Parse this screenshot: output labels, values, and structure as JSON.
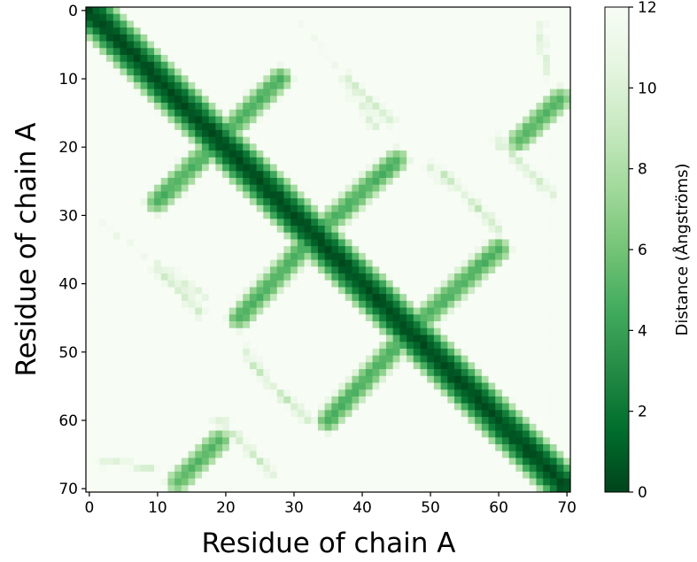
{
  "chart_data": {
    "type": "heatmap",
    "title": "",
    "xlabel": "Residue of chain A",
    "ylabel": "Residue of chain A",
    "colorbar_label": "Distance (Ångströms)",
    "x_range": [
      0,
      70
    ],
    "y_range": [
      0,
      70
    ],
    "y_axis_inverted": true,
    "x_ticks": [
      0,
      10,
      20,
      30,
      40,
      50,
      60,
      70
    ],
    "y_ticks": [
      0,
      10,
      20,
      30,
      40,
      50,
      60,
      70
    ],
    "colorbar_range": [
      0,
      12
    ],
    "colorbar_ticks": [
      0,
      2,
      4,
      6,
      8,
      10,
      12
    ],
    "colormap": "Greens_r",
    "colormap_stops": [
      "#00441b",
      "#006d2c",
      "#238b45",
      "#41ab5d",
      "#74c476",
      "#a1d99b",
      "#c7e9c0",
      "#e5f5e0",
      "#f7fcf5"
    ],
    "residue_count": 71,
    "contact_bands": [
      {
        "from": [
          0,
          0
        ],
        "to": [
          70,
          70
        ],
        "min_distance": 0
      },
      {
        "from": [
          18,
          20
        ],
        "to": [
          28,
          10
        ],
        "min_distance": 4.5
      },
      {
        "from": [
          20,
          18
        ],
        "to": [
          10,
          28
        ],
        "min_distance": 4.5
      },
      {
        "from": [
          33,
          33
        ],
        "to": [
          45,
          22
        ],
        "min_distance": 4.5
      },
      {
        "from": [
          33,
          33
        ],
        "to": [
          22,
          45
        ],
        "min_distance": 4.5
      },
      {
        "from": [
          47,
          47
        ],
        "to": [
          60,
          35
        ],
        "min_distance": 4.5
      },
      {
        "from": [
          47,
          47
        ],
        "to": [
          35,
          60
        ],
        "min_distance": 4.5
      },
      {
        "from": [
          63,
          19
        ],
        "to": [
          69,
          13
        ],
        "min_distance": 4.8
      },
      {
        "from": [
          19,
          63
        ],
        "to": [
          13,
          69
        ],
        "min_distance": 4.8
      }
    ],
    "weak_contact_regions": [
      {
        "from": [
          10,
          38
        ],
        "to": [
          16,
          44
        ],
        "min_distance": 8.5
      },
      {
        "from": [
          38,
          10
        ],
        "to": [
          44,
          16
        ],
        "min_distance": 8.5
      },
      {
        "from": [
          24,
          52
        ],
        "to": [
          32,
          60
        ],
        "min_distance": 8.5
      },
      {
        "from": [
          52,
          24
        ],
        "to": [
          60,
          32
        ],
        "min_distance": 8.5
      },
      {
        "from": [
          37,
          10
        ],
        "to": [
          42,
          17
        ],
        "min_distance": 9.0
      },
      {
        "from": [
          10,
          37
        ],
        "to": [
          17,
          42
        ],
        "min_distance": 9.0
      },
      {
        "from": [
          50,
          23
        ],
        "to": [
          56,
          28
        ],
        "min_distance": 9.0
      },
      {
        "from": [
          23,
          50
        ],
        "to": [
          28,
          56
        ],
        "min_distance": 9.0
      },
      {
        "from": [
          60,
          19
        ],
        "to": [
          68,
          27
        ],
        "min_distance": 8.5
      },
      {
        "from": [
          19,
          60
        ],
        "to": [
          27,
          68
        ],
        "min_distance": 8.5
      },
      {
        "from": [
          66,
          2
        ],
        "to": [
          67,
          9
        ],
        "min_distance": 9.0
      },
      {
        "from": [
          2,
          66
        ],
        "to": [
          9,
          67
        ],
        "min_distance": 9.0
      },
      {
        "from": [
          2,
          31
        ],
        "to": [
          8,
          36
        ],
        "min_distance": 10.0
      },
      {
        "from": [
          31,
          2
        ],
        "to": [
          36,
          8
        ],
        "min_distance": 10.0
      }
    ]
  }
}
